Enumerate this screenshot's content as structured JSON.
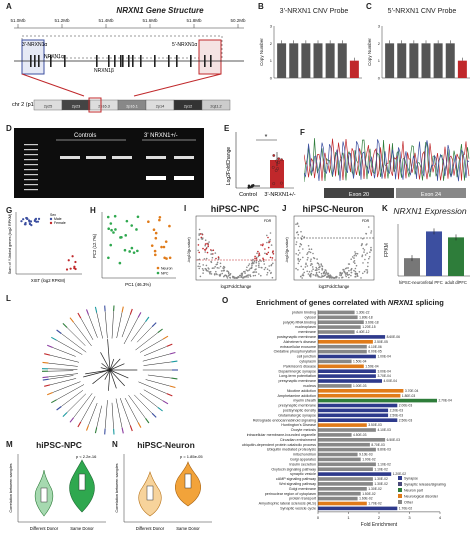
{
  "colors": {
    "synapse": "#2e3a8c",
    "neuron_part": "#2e7d3a",
    "neuro_disorder": "#e07b1a",
    "other": "#888888",
    "cnv_del": "#c0282b",
    "cnv_ctrl": "#555555",
    "npc": "#3c4fa0",
    "npc_fill": "#2fa84f",
    "neuron_fill": "#f2a33a"
  },
  "labels": {
    "A": "A",
    "B": "B",
    "C": "C",
    "D": "D",
    "E": "E",
    "F": "F",
    "G": "G",
    "H": "H",
    "I": "I",
    "J": "J",
    "K": "K",
    "L": "L",
    "M": "M",
    "N": "N",
    "O": "O"
  },
  "A": {
    "title": "NRXN1 Gene Structure",
    "ruler": [
      "51.0Mb",
      "51.2Mb",
      "51.4Mb",
      "51.6Mb",
      "51.8Mb",
      "50.2Mb"
    ],
    "probe3": "3'-NRXN1α",
    "probe5": "5'-NRXN1α",
    "alpha": "NRXN1α",
    "beta": "NRXN1β",
    "chr": "chr 2 (p16.3)",
    "bands": [
      "2p25",
      "2p23",
      "2p16.3",
      "2p16.1",
      "2p14",
      "2p12",
      "2q11.2"
    ]
  },
  "B": {
    "title": "3'-NRXN1 CNV Probe",
    "ylabel": "Copy Number",
    "yticks": [
      "0",
      "1",
      "2",
      "3"
    ]
  },
  "C": {
    "title": "5'-NRXN1 CNV Probe",
    "ylabel": "Copy Number",
    "yticks": [
      "0",
      "1",
      "2",
      "3"
    ]
  },
  "D": {
    "controls": "Controls",
    "del": "3' NRXN1+/-"
  },
  "E": {
    "ylabel": "Log2FoldChange",
    "star": "*",
    "cat1": "Control",
    "cat2": "3'-NRXN1+/-"
  },
  "F": {
    "exonA": "Exon 20",
    "exonB": "Exon 24"
  },
  "G": {
    "legend": [
      "Sex",
      "Male",
      "Female"
    ],
    "xlabel": "XIST (log2 RPKM)",
    "ylabel": "Sum of Y-linked genes (log2 RPKM)"
  },
  "H": {
    "xlabel": "PC1 (46.3%)",
    "ylabel": "PC2 (12.7%)",
    "legend": [
      "Neuron",
      "NPC"
    ]
  },
  "I": {
    "title": "hiPSC-NPC",
    "xlabel": "log2FoldChange",
    "ylabel": "-log10(p-value)",
    "fdr": "FDR"
  },
  "J": {
    "title": "hiPSC-Neuron",
    "xlabel": "log2FoldChange",
    "ylabel": "-log10(p-value)",
    "fdr": "FDR"
  },
  "K": {
    "title": "NRXN1 Expression",
    "ylabel": "FPKM",
    "categories": [
      "hiPSC-neuron",
      "fetal PFC",
      "adult dlPFC"
    ]
  },
  "M": {
    "title": "hiPSC-NPC",
    "pvalue": "p < 2.2e-16",
    "ylabel": "Correlation between samples",
    "cat1": "Different Donor",
    "cat2": "Same Donor"
  },
  "N": {
    "title": "hiPSC-Neuron",
    "pvalue": "p = 1.85e-05",
    "ylabel": "Correlation between samples",
    "cat1": "Different Donor",
    "cat2": "Same Donor"
  },
  "O": {
    "title_pre": "Enrichment of genes correlated with ",
    "title_gene": "NRXN1",
    "title_post": " splicing",
    "xlabel": "Fold Enrichment",
    "xticks": [
      "0",
      "1",
      "2",
      "3",
      "4"
    ],
    "legend": [
      "Synapse",
      "Synaptic release/signaling",
      "Neuron part",
      "Neurological disorder",
      "Other"
    ]
  },
  "chart_data": [
    {
      "type": "bar",
      "panel": "B",
      "title": "3'-NRXN1 CNV Probe",
      "ylabel": "Copy Number",
      "ylim": [
        0,
        3
      ],
      "values": [
        2,
        2,
        2,
        2,
        2,
        2,
        1
      ]
    },
    {
      "type": "bar",
      "panel": "C",
      "title": "5'-NRXN1 CNV Probe",
      "ylabel": "Copy Number",
      "ylim": [
        0,
        3
      ],
      "values": [
        2,
        2,
        2,
        2,
        2,
        2,
        1
      ]
    },
    {
      "type": "bar",
      "panel": "K",
      "title": "NRXN1 Expression",
      "ylabel": "FPKM",
      "categories": [
        "hiPSC-neuron",
        "fetal PFC",
        "adult dlPFC"
      ],
      "values": [
        12,
        30,
        26
      ]
    },
    {
      "type": "bar",
      "panel": "O",
      "title": "Enrichment of genes correlated with NRXN1 splicing",
      "xlabel": "Fold Enrichment",
      "xlim": [
        0,
        4
      ],
      "categories": [
        "protein binding",
        "cytosol",
        "poly(A) RNA binding",
        "nucleoplasm",
        "membrane",
        "postsynaptic membrane",
        "Alzheimer's disease",
        "extracellular exosome",
        "Oxidative phosphorylation",
        "cell junction",
        "cytoplasm",
        "Parkinson's disease",
        "Dopaminergic synapse",
        "Long-term potentiation",
        "presynaptic membrane",
        "nucleus",
        "Nicotine addiction",
        "Amphetamine addiction",
        "myelin sheath",
        "presynaptic membrane",
        "postsynaptic density",
        "Glutamatergic synapse",
        "Retrograde endocannabinoid signaling",
        "Huntington's Disease",
        "Oocyte meiosis",
        "intracellular membrane-bounded organelle",
        "Circadian entrainment",
        "ubiquitin-dependent protein catabolic process",
        "Ubiquitin mediated proteolysis",
        "mitochondrion",
        "Golgi apparatus",
        "Insulin secretion",
        "Oxytocin signaling pathway",
        "synaptic vesicle",
        "cAMP signaling pathway",
        "Wnt signaling pathway",
        "Golgi membrane",
        "perinuclear region of cytoplasm",
        "protein transport",
        "Amyotrophic lateral sclerosis (ALS)",
        "Synaptic vesicle cycle"
      ],
      "values": [
        1.2,
        1.3,
        1.5,
        1.4,
        1.2,
        2.2,
        1.8,
        1.6,
        1.6,
        1.9,
        1.1,
        1.5,
        1.9,
        1.9,
        2.1,
        1.1,
        2.8,
        2.7,
        3.9,
        2.6,
        2.3,
        2.3,
        2.6,
        1.6,
        1.9,
        1.1,
        2.2,
        1.7,
        1.9,
        1.3,
        1.4,
        1.9,
        1.8,
        2.4,
        1.8,
        1.8,
        1.6,
        1.4,
        1.3,
        1.6,
        2.6
      ],
      "value_labels": [
        "1.30E-22",
        "1.80E-18",
        "3.60E-18",
        "1.20E-15",
        "4.40E-12",
        "8.60E-06",
        "2.50E-05",
        "4.10E-06",
        "6.00E-05",
        "1.00E-04",
        "1.50E-04",
        "1.50E-04",
        "3.00E-04",
        "3.70E-04",
        "4.00E-04",
        "1.00E-03",
        "3.70E-04",
        "1.80E-03",
        "2.70E-04",
        "2.00E-03",
        "2.20E-03",
        "2.50E-03",
        "2.50E-03",
        "3.50E-03",
        "4.10E-03",
        "4.50E-03",
        "6.50E-03",
        "8.70E-03",
        "8.80E-03",
        "9.10E-03",
        "1.00E-02",
        "1.10E-02",
        "1.10E-02",
        "1.20E-02",
        "1.30E-02",
        "1.30E-02",
        "1.30E-02",
        "1.50E-02",
        "1.60E-02",
        "1.70E-02",
        "1.70E-02"
      ],
      "groups": [
        "other",
        "other",
        "other",
        "other",
        "other",
        "synapse",
        "neuro_disorder",
        "other",
        "other",
        "synapse",
        "other",
        "neuro_disorder",
        "synapse",
        "synapse",
        "synapse",
        "other",
        "neuro_disorder",
        "neuro_disorder",
        "neuron_part",
        "synapse",
        "synapse",
        "synapse",
        "synapse",
        "neuro_disorder",
        "other",
        "other",
        "other",
        "other",
        "other",
        "other",
        "other",
        "other",
        "other",
        "synapse",
        "other",
        "other",
        "other",
        "other",
        "other",
        "neuro_disorder",
        "synapse"
      ]
    }
  ]
}
